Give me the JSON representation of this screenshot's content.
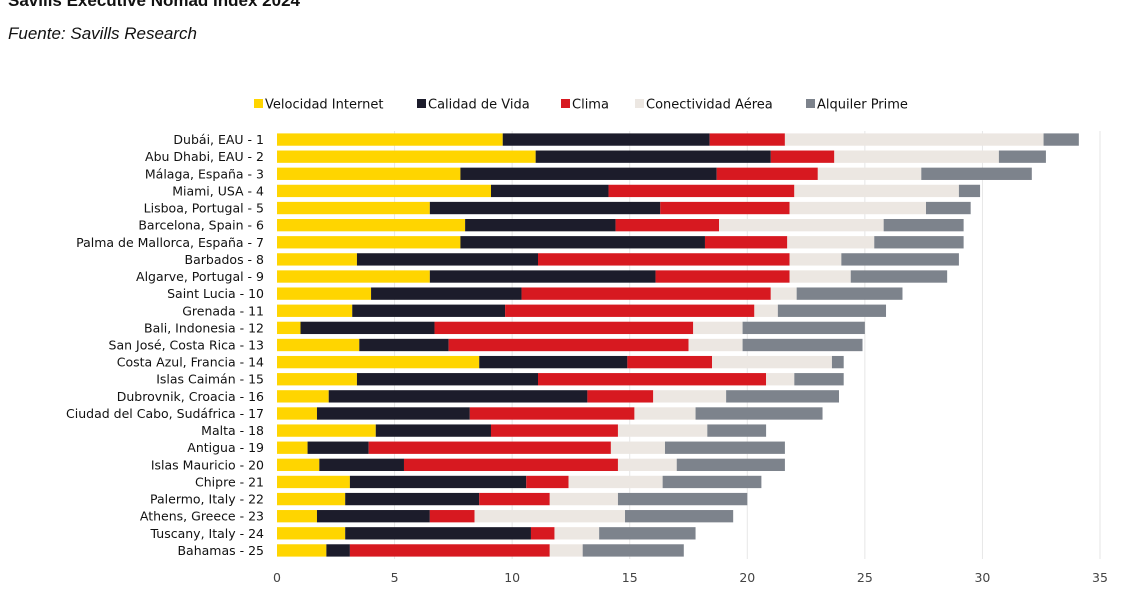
{
  "chart_data": {
    "type": "bar",
    "orientation": "horizontal",
    "stacked": true,
    "title": "Savills Executive Nomad Index 2024",
    "subtitle": "Fuente: Savills Research",
    "xlim": [
      0,
      35
    ],
    "xticks": [
      0,
      5,
      10,
      15,
      20,
      25,
      30,
      35
    ],
    "grid": true,
    "legend_position": "top",
    "categories": [
      "Dubái, EAU - 1",
      "Abu Dhabi, EAU - 2",
      "Málaga, España - 3",
      "Miami, USA - 4",
      "Lisboa, Portugal - 5",
      "Barcelona, Spain - 6",
      "Palma de Mallorca, España - 7",
      "Barbados - 8",
      "Algarve, Portugal - 9",
      "Saint Lucia - 10",
      "Grenada - 11",
      "Bali, Indonesia - 12",
      "San José, Costa Rica - 13",
      "Costa Azul, Francia - 14",
      "Islas Caimán - 15",
      "Dubrovnik, Croacia - 16",
      "Ciudad del Cabo, Sudáfrica - 17",
      "Malta - 18",
      "Antigua - 19",
      "Islas Mauricio - 20",
      "Chipre - 21",
      "Palermo, Italy - 22",
      "Athens, Greece - 23",
      "Tuscany, Italy - 24",
      "Bahamas - 25"
    ],
    "series": [
      {
        "name": "Velocidad Internet",
        "color": "#ffd500",
        "values": [
          9.6,
          11.0,
          7.8,
          9.1,
          6.5,
          8.0,
          7.8,
          3.4,
          6.5,
          4.0,
          3.2,
          1.0,
          3.5,
          8.6,
          3.4,
          2.2,
          1.7,
          4.2,
          1.3,
          1.8,
          3.1,
          2.9,
          1.7,
          2.9,
          2.1
        ]
      },
      {
        "name": "Calidad de Vida",
        "color": "#1c1c2b",
        "values": [
          8.8,
          10.0,
          10.9,
          5.0,
          9.8,
          6.4,
          10.4,
          7.7,
          9.6,
          6.4,
          6.5,
          5.7,
          3.8,
          6.3,
          7.7,
          11.0,
          6.5,
          4.9,
          2.6,
          3.6,
          7.5,
          5.7,
          4.8,
          7.9,
          1.0
        ]
      },
      {
        "name": "Clima",
        "color": "#d71920",
        "values": [
          3.2,
          2.7,
          4.3,
          7.9,
          5.5,
          4.4,
          3.5,
          10.7,
          5.7,
          10.6,
          10.6,
          11.0,
          10.2,
          3.6,
          9.7,
          2.8,
          7.0,
          5.4,
          10.3,
          9.1,
          1.8,
          3.0,
          1.9,
          1.0,
          8.5
        ]
      },
      {
        "name": "Conectividad Aérea",
        "color": "#ece7e2",
        "values": [
          11.0,
          7.0,
          4.4,
          7.0,
          5.8,
          7.0,
          3.7,
          2.2,
          2.6,
          1.1,
          1.0,
          2.1,
          2.3,
          5.1,
          1.2,
          3.1,
          2.6,
          3.8,
          2.3,
          2.5,
          4.0,
          2.9,
          6.4,
          1.9,
          1.4
        ]
      },
      {
        "name": "Alquiler Prime",
        "color": "#7d838c",
        "values": [
          1.5,
          2.0,
          4.7,
          0.9,
          1.9,
          3.4,
          3.8,
          5.0,
          4.1,
          4.5,
          4.6,
          5.2,
          5.1,
          0.5,
          2.1,
          4.8,
          5.4,
          2.5,
          5.1,
          4.6,
          4.2,
          5.5,
          4.6,
          4.1,
          4.3
        ]
      }
    ]
  }
}
